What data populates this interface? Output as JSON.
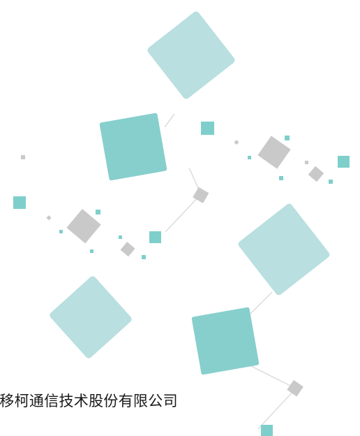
{
  "document": {
    "company_name": "海移柯通信技术股份有限公司"
  },
  "colors": {
    "light_teal": "#b9dfe0",
    "teal": "#86cfcd",
    "small_teal": "#7ecfcb",
    "gray": "#c9c9c9",
    "connector_line": "#dcdcdc"
  }
}
